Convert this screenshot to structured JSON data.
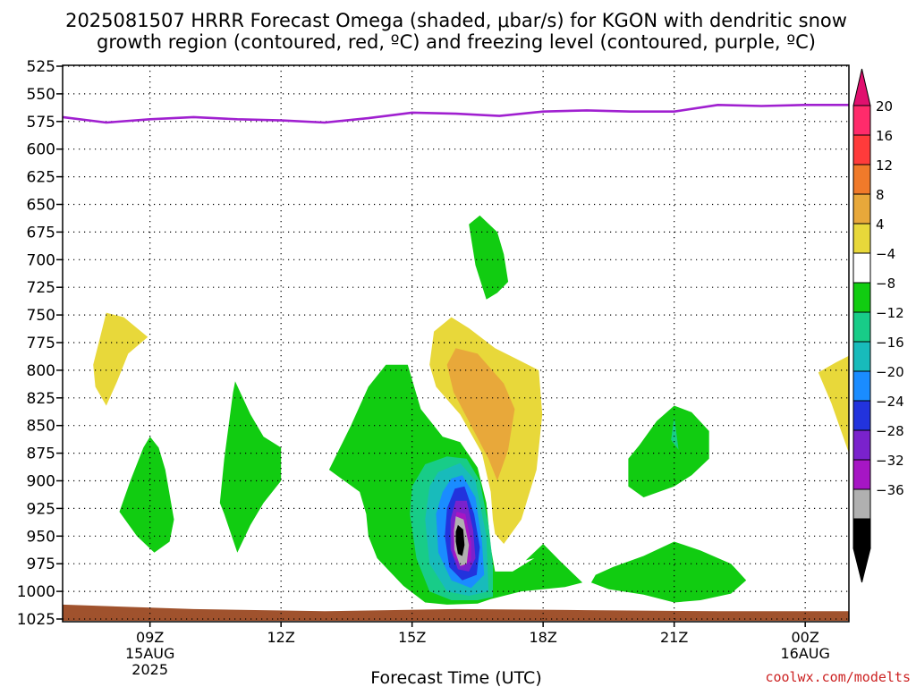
{
  "chart_data": {
    "type": "heatmap",
    "title_line1": "2025081507 HRRR Forecast Omega (shaded, μbar/s) for KGON with dendritic snow",
    "title_line2": "growth region (contoured, red, ºC) and freezing level (contoured, purple, ºC)",
    "xlabel": "Forecast Time (UTC)",
    "credit": "coolwx.com/modelts",
    "y_axis": {
      "ticks": [
        "525",
        "550",
        "575",
        "600",
        "625",
        "650",
        "675",
        "700",
        "725",
        "750",
        "775",
        "800",
        "825",
        "850",
        "875",
        "900",
        "925",
        "950",
        "975",
        "1000",
        "1025"
      ],
      "range": [
        525,
        1025
      ],
      "inverted": true
    },
    "x_axis": {
      "range_hours": [
        7,
        25
      ],
      "ticks": [
        {
          "hour": 9,
          "label": "09Z",
          "sub1": "15AUG",
          "sub2": "2025"
        },
        {
          "hour": 12,
          "label": "12Z",
          "sub1": "",
          "sub2": ""
        },
        {
          "hour": 15,
          "label": "15Z",
          "sub1": "",
          "sub2": ""
        },
        {
          "hour": 18,
          "label": "18Z",
          "sub1": "",
          "sub2": ""
        },
        {
          "hour": 21,
          "label": "21Z",
          "sub1": "",
          "sub2": ""
        },
        {
          "hour": 24,
          "label": "00Z",
          "sub1": "16AUG",
          "sub2": ""
        }
      ]
    },
    "grid": true,
    "colorbar": {
      "labels": [
        "20",
        "16",
        "12",
        "8",
        "4",
        "−4",
        "−8",
        "−12",
        "−16",
        "−20",
        "−24",
        "−28",
        "−32",
        "−36"
      ],
      "colors": [
        "#ff2b6b",
        "#ff3b3b",
        "#f07a2a",
        "#e8a83a",
        "#e8d83a",
        "#ffffff",
        "#11cc11",
        "#18cc88",
        "#18bbbb",
        "#1a8cff",
        "#2233dd",
        "#7a22cc",
        "#a616c4",
        "#b0b0b0",
        "#000000"
      ],
      "top_arrow_color": "#e0106e",
      "bottom_arrow_color": "#000000"
    },
    "freezing_level": {
      "color": "#a020d0",
      "points": [
        [
          7.0,
          571
        ],
        [
          8.0,
          576
        ],
        [
          9.0,
          573
        ],
        [
          10.0,
          571
        ],
        [
          11.0,
          573
        ],
        [
          12.0,
          574
        ],
        [
          13.0,
          576
        ],
        [
          14.0,
          572
        ],
        [
          15.0,
          567
        ],
        [
          16.0,
          568
        ],
        [
          17.0,
          570
        ],
        [
          18.0,
          566
        ],
        [
          19.0,
          565
        ],
        [
          20.0,
          566
        ],
        [
          21.0,
          566
        ],
        [
          22.0,
          560
        ],
        [
          23.0,
          561
        ],
        [
          24.0,
          560
        ],
        [
          25.0,
          560
        ]
      ]
    },
    "omega_regions": [
      {
        "color": "#e8d83a",
        "points": [
          [
            7.7,
            795
          ],
          [
            8.0,
            748
          ],
          [
            8.4,
            752
          ],
          [
            8.95,
            770
          ],
          [
            8.5,
            785
          ],
          [
            8.25,
            810
          ],
          [
            8.0,
            832
          ],
          [
            7.75,
            815
          ]
        ]
      },
      {
        "color": "#e8d83a",
        "points": [
          [
            15.4,
            795
          ],
          [
            15.5,
            765
          ],
          [
            15.9,
            752
          ],
          [
            16.3,
            762
          ],
          [
            16.9,
            780
          ],
          [
            17.4,
            790
          ],
          [
            17.9,
            800
          ],
          [
            17.98,
            840
          ],
          [
            17.85,
            890
          ],
          [
            17.5,
            935
          ],
          [
            17.1,
            957
          ],
          [
            16.9,
            948
          ],
          [
            16.85,
            935
          ],
          [
            16.8,
            910
          ],
          [
            16.6,
            875
          ],
          [
            16.1,
            840
          ],
          [
            15.55,
            815
          ]
        ]
      },
      {
        "color": "#e8a83a",
        "points": [
          [
            15.8,
            795
          ],
          [
            16.0,
            780
          ],
          [
            16.5,
            785
          ],
          [
            17.1,
            812
          ],
          [
            17.35,
            835
          ],
          [
            17.2,
            872
          ],
          [
            16.95,
            900
          ],
          [
            16.75,
            880
          ],
          [
            16.35,
            850
          ],
          [
            15.95,
            820
          ]
        ]
      },
      {
        "color": "#e8d83a",
        "points": [
          [
            25.0,
            787
          ],
          [
            24.7,
            793
          ],
          [
            24.3,
            802
          ],
          [
            24.6,
            830
          ],
          [
            25.0,
            875
          ]
        ]
      },
      {
        "color": "#11cc11",
        "points": [
          [
            9.0,
            860
          ],
          [
            9.2,
            870
          ],
          [
            9.35,
            890
          ],
          [
            9.55,
            935
          ],
          [
            9.45,
            955
          ],
          [
            9.1,
            965
          ],
          [
            8.7,
            950
          ],
          [
            8.3,
            928
          ],
          [
            8.55,
            900
          ],
          [
            8.85,
            870
          ]
        ]
      },
      {
        "color": "#11cc11",
        "points": [
          [
            10.95,
            810
          ],
          [
            11.3,
            840
          ],
          [
            11.6,
            860
          ],
          [
            12.0,
            870
          ],
          [
            12.0,
            900
          ],
          [
            11.6,
            920
          ],
          [
            11.3,
            940
          ],
          [
            11.0,
            965
          ],
          [
            10.7,
            930
          ],
          [
            10.6,
            920
          ],
          [
            10.7,
            880
          ],
          [
            10.9,
            820
          ]
        ]
      },
      {
        "color": "#11cc11",
        "points": [
          [
            16.3,
            668
          ],
          [
            16.55,
            660
          ],
          [
            16.95,
            675
          ],
          [
            17.1,
            695
          ],
          [
            17.2,
            720
          ],
          [
            16.95,
            730
          ],
          [
            16.7,
            736
          ],
          [
            16.45,
            705
          ]
        ]
      },
      {
        "color": "#11cc11",
        "points": [
          [
            14.9,
            795
          ],
          [
            15.2,
            835
          ],
          [
            15.7,
            860
          ],
          [
            16.1,
            865
          ],
          [
            16.5,
            888
          ],
          [
            16.7,
            920
          ],
          [
            16.8,
            960
          ],
          [
            16.9,
            982
          ],
          [
            17.3,
            982
          ],
          [
            17.8,
            970
          ],
          [
            17.6,
            972
          ],
          [
            18.0,
            957
          ],
          [
            18.4,
            973
          ],
          [
            18.9,
            992
          ],
          [
            18.5,
            996
          ],
          [
            17.5,
            1000
          ],
          [
            16.8,
            1007
          ],
          [
            16.5,
            1011
          ],
          [
            15.8,
            1012
          ],
          [
            15.3,
            1010
          ],
          [
            14.8,
            995
          ],
          [
            14.2,
            970
          ],
          [
            14.0,
            950
          ],
          [
            13.95,
            930
          ],
          [
            13.8,
            910
          ],
          [
            13.1,
            890
          ],
          [
            13.6,
            850
          ],
          [
            14.0,
            815
          ],
          [
            14.4,
            795
          ]
        ]
      },
      {
        "color": "#18cc88",
        "points": [
          [
            15.3,
            885
          ],
          [
            15.8,
            878
          ],
          [
            16.25,
            880
          ],
          [
            16.55,
            900
          ],
          [
            16.75,
            940
          ],
          [
            16.85,
            975
          ],
          [
            16.85,
            1005
          ],
          [
            16.5,
            1008
          ],
          [
            15.9,
            1008
          ],
          [
            15.4,
            1000
          ],
          [
            15.1,
            970
          ],
          [
            14.95,
            930
          ],
          [
            15.0,
            905
          ]
        ]
      },
      {
        "color": "#18bbbb",
        "points": [
          [
            15.6,
            892
          ],
          [
            16.1,
            884
          ],
          [
            16.45,
            900
          ],
          [
            16.7,
            950
          ],
          [
            16.75,
            1000
          ],
          [
            16.3,
            1004
          ],
          [
            15.8,
            1000
          ],
          [
            15.4,
            975
          ],
          [
            15.3,
            935
          ],
          [
            15.4,
            905
          ]
        ]
      },
      {
        "color": "#1a8cff",
        "points": [
          [
            15.9,
            898
          ],
          [
            16.15,
            895
          ],
          [
            16.45,
            915
          ],
          [
            16.6,
            955
          ],
          [
            16.65,
            985
          ],
          [
            16.35,
            997
          ],
          [
            15.9,
            990
          ],
          [
            15.6,
            965
          ],
          [
            15.55,
            930
          ],
          [
            15.7,
            910
          ]
        ]
      },
      {
        "color": "#2233dd",
        "points": [
          [
            15.98,
            907
          ],
          [
            16.2,
            905
          ],
          [
            16.42,
            930
          ],
          [
            16.55,
            960
          ],
          [
            16.48,
            985
          ],
          [
            16.15,
            990
          ],
          [
            15.85,
            978
          ],
          [
            15.75,
            950
          ],
          [
            15.8,
            925
          ]
        ]
      },
      {
        "color": "#7a22cc",
        "points": [
          [
            16.0,
            918
          ],
          [
            16.25,
            918
          ],
          [
            16.4,
            945
          ],
          [
            16.45,
            970
          ],
          [
            16.3,
            982
          ],
          [
            16.05,
            980
          ],
          [
            15.88,
            962
          ],
          [
            15.88,
            935
          ]
        ]
      },
      {
        "color": "#a616c4",
        "points": [
          [
            16.02,
            928
          ],
          [
            16.22,
            930
          ],
          [
            16.35,
            955
          ],
          [
            16.35,
            972
          ],
          [
            16.15,
            978
          ],
          [
            15.95,
            968
          ],
          [
            15.93,
            945
          ]
        ]
      },
      {
        "color": "#b0b0b0",
        "points": [
          [
            16.0,
            932
          ],
          [
            16.18,
            935
          ],
          [
            16.3,
            958
          ],
          [
            16.25,
            975
          ],
          [
            16.1,
            977
          ],
          [
            15.97,
            962
          ],
          [
            15.96,
            945
          ]
        ]
      },
      {
        "color": "#000000",
        "points": [
          [
            16.05,
            940
          ],
          [
            16.17,
            944
          ],
          [
            16.2,
            958
          ],
          [
            16.15,
            968
          ],
          [
            16.05,
            966
          ],
          [
            16.0,
            955
          ],
          [
            16.0,
            946
          ]
        ]
      },
      {
        "color": "#11cc11",
        "points": [
          [
            20.2,
            868
          ],
          [
            20.6,
            846
          ],
          [
            21.0,
            832
          ],
          [
            21.4,
            838
          ],
          [
            21.8,
            855
          ],
          [
            21.8,
            880
          ],
          [
            21.4,
            895
          ],
          [
            21.0,
            905
          ],
          [
            20.3,
            915
          ],
          [
            19.95,
            905
          ],
          [
            19.95,
            880
          ]
        ]
      },
      {
        "color": "#18cc88",
        "points": [
          [
            20.93,
            863
          ],
          [
            21.0,
            842
          ],
          [
            21.1,
            872
          ]
        ]
      },
      {
        "color": "#11cc11",
        "points": [
          [
            19.2,
            985
          ],
          [
            19.6,
            978
          ],
          [
            20.3,
            968
          ],
          [
            21.0,
            955
          ],
          [
            21.6,
            963
          ],
          [
            22.3,
            975
          ],
          [
            22.65,
            990
          ],
          [
            22.3,
            1002
          ],
          [
            21.6,
            1008
          ],
          [
            21.0,
            1010
          ],
          [
            20.3,
            1003
          ],
          [
            19.5,
            998
          ],
          [
            19.1,
            992
          ]
        ]
      }
    ],
    "terrain": {
      "color": "#a0522d",
      "points": [
        [
          7.0,
          1012
        ],
        [
          10.0,
          1016
        ],
        [
          13.0,
          1018
        ],
        [
          16.0,
          1016
        ],
        [
          19.0,
          1017
        ],
        [
          22.0,
          1018
        ],
        [
          25.0,
          1018
        ]
      ]
    }
  }
}
